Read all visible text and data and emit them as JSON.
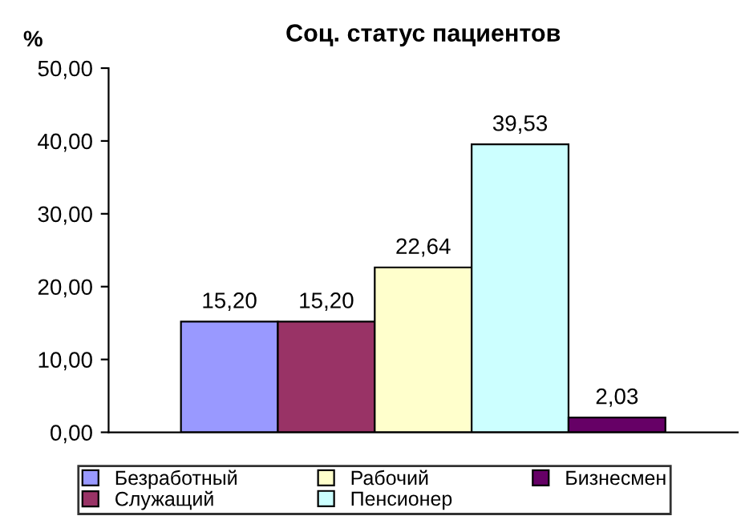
{
  "chart_data": {
    "type": "bar",
    "title": "Соц. статус пациентов",
    "ylabel": "%",
    "categories": [
      null
    ],
    "series": [
      {
        "name": "Безработный",
        "color": "#9999ff",
        "values": [
          15.2
        ],
        "value_labels": [
          "15,20"
        ]
      },
      {
        "name": "Служащий",
        "color": "#993366",
        "values": [
          15.2
        ],
        "value_labels": [
          "15,20"
        ]
      },
      {
        "name": "Рабочий",
        "color": "#ffffcc",
        "values": [
          22.64
        ],
        "value_labels": [
          "22,64"
        ]
      },
      {
        "name": "Пенсионер",
        "color": "#ccffff",
        "values": [
          39.53
        ],
        "value_labels": [
          "39,53"
        ]
      },
      {
        "name": "Бизнесмен",
        "color": "#660066",
        "values": [
          2.03
        ],
        "value_labels": [
          "2,03"
        ]
      }
    ],
    "ylim": [
      0,
      50
    ],
    "yticks": [
      {
        "value": 0,
        "label": "0,00"
      },
      {
        "value": 10,
        "label": "10,00"
      },
      {
        "value": 20,
        "label": "20,00"
      },
      {
        "value": 30,
        "label": "30,00"
      },
      {
        "value": 40,
        "label": "40,00"
      },
      {
        "value": 50,
        "label": "50,00"
      }
    ],
    "grid": false,
    "legend": "bottom"
  }
}
